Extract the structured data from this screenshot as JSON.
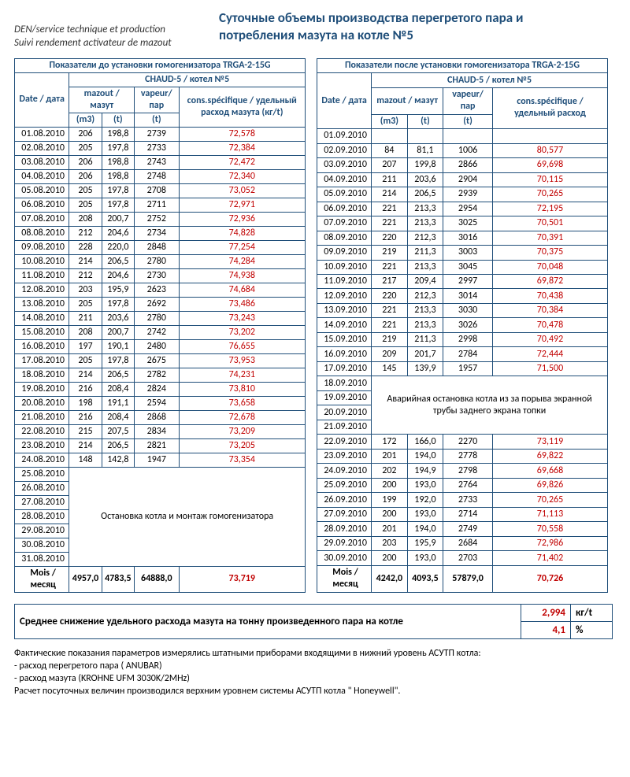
{
  "header": {
    "note_line1": "DEN/service technique et production",
    "note_line2": "Suivi rendement activateur de mazout",
    "title_line1": "Суточные объемы производства перегретого пара  и",
    "title_line2": "потребления мазута на котле №5"
  },
  "left": {
    "caption": "Показатели до установки гомогенизатора TRGA-2-15G",
    "sub": "CHAUD-5 / котел №5",
    "cols": {
      "date": "Date / дата",
      "mazout": "mazout / мазут",
      "m3": "(m3)",
      "t": "(t)",
      "vapeur": "vapeur/ пар",
      "vap_t": "(t)",
      "cons": "cons.spécifique / удельный расход  мазута (кг/t)"
    },
    "rows": [
      {
        "d": "01.08.2010",
        "m3": "206",
        "t": "198,8",
        "v": "2739",
        "c": "72,578"
      },
      {
        "d": "02.08.2010",
        "m3": "205",
        "t": "197,8",
        "v": "2733",
        "c": "72,384"
      },
      {
        "d": "03.08.2010",
        "m3": "206",
        "t": "198,8",
        "v": "2743",
        "c": "72,472"
      },
      {
        "d": "04.08.2010",
        "m3": "206",
        "t": "198,8",
        "v": "2748",
        "c": "72,340"
      },
      {
        "d": "05.08.2010",
        "m3": "205",
        "t": "197,8",
        "v": "2708",
        "c": "73,052"
      },
      {
        "d": "06.08.2010",
        "m3": "205",
        "t": "197,8",
        "v": "2711",
        "c": "72,971"
      },
      {
        "d": "07.08.2010",
        "m3": "208",
        "t": "200,7",
        "v": "2752",
        "c": "72,936"
      },
      {
        "d": "08.08.2010",
        "m3": "212",
        "t": "204,6",
        "v": "2734",
        "c": "74,828"
      },
      {
        "d": "09.08.2010",
        "m3": "228",
        "t": "220,0",
        "v": "2848",
        "c": "77,254"
      },
      {
        "d": "10.08.2010",
        "m3": "214",
        "t": "206,5",
        "v": "2780",
        "c": "74,284"
      },
      {
        "d": "11.08.2010",
        "m3": "212",
        "t": "204,6",
        "v": "2730",
        "c": "74,938"
      },
      {
        "d": "12.08.2010",
        "m3": "203",
        "t": "195,9",
        "v": "2623",
        "c": "74,684"
      },
      {
        "d": "13.08.2010",
        "m3": "205",
        "t": "197,8",
        "v": "2692",
        "c": "73,486"
      },
      {
        "d": "14.08.2010",
        "m3": "211",
        "t": "203,6",
        "v": "2780",
        "c": "73,243"
      },
      {
        "d": "15.08.2010",
        "m3": "208",
        "t": "200,7",
        "v": "2742",
        "c": "73,202"
      },
      {
        "d": "16.08.2010",
        "m3": "197",
        "t": "190,1",
        "v": "2480",
        "c": "76,655"
      },
      {
        "d": "17.08.2010",
        "m3": "205",
        "t": "197,8",
        "v": "2675",
        "c": "73,953"
      },
      {
        "d": "18.08.2010",
        "m3": "214",
        "t": "206,5",
        "v": "2782",
        "c": "74,231"
      },
      {
        "d": "19.08.2010",
        "m3": "216",
        "t": "208,4",
        "v": "2824",
        "c": "73,810"
      },
      {
        "d": "20.08.2010",
        "m3": "198",
        "t": "191,1",
        "v": "2594",
        "c": "73,658"
      },
      {
        "d": "21.08.2010",
        "m3": "216",
        "t": "208,4",
        "v": "2868",
        "c": "72,678"
      },
      {
        "d": "22.08.2010",
        "m3": "215",
        "t": "207,5",
        "v": "2834",
        "c": "73,209"
      },
      {
        "d": "23.08.2010",
        "m3": "214",
        "t": "206,5",
        "v": "2821",
        "c": "73,205"
      },
      {
        "d": "24.08.2010",
        "m3": "148",
        "t": "142,8",
        "v": "1947",
        "c": "73,354"
      }
    ],
    "stop_dates": [
      "25.08.2010",
      "26.08.2010",
      "27.08.2010",
      "28.08.2010",
      "29.08.2010",
      "30.08.2010",
      "31.08.2010"
    ],
    "stop_note": "Остановка котла и монтаж гомогенизатора",
    "total": {
      "label": "Mois /месяц",
      "m3": "4957,0",
      "t": "4783,5",
      "v": "64888,0",
      "c": "73,719"
    }
  },
  "right": {
    "caption": "Показатели после установки гомогенизатора TRGA-2-15G",
    "sub": "CHAUD-5 / котел №5",
    "cols": {
      "date": "Date / дата",
      "mazout": "mazout / мазут",
      "m3": "(m3)",
      "t": "(t)",
      "vapeur": "vapeur/ пар",
      "vap_t": "(t)",
      "cons": "cons.spécifique  / удельный расход"
    },
    "rows1": [
      {
        "d": "01.09.2010",
        "m3": "",
        "t": "",
        "v": "",
        "c": ""
      },
      {
        "d": "02.09.2010",
        "m3": "84",
        "t": "81,1",
        "v": "1006",
        "c": "80,577"
      },
      {
        "d": "03.09.2010",
        "m3": "207",
        "t": "199,8",
        "v": "2866",
        "c": "69,698"
      },
      {
        "d": "04.09.2010",
        "m3": "211",
        "t": "203,6",
        "v": "2904",
        "c": "70,115"
      },
      {
        "d": "05.09.2010",
        "m3": "214",
        "t": "206,5",
        "v": "2939",
        "c": "70,265"
      },
      {
        "d": "06.09.2010",
        "m3": "221",
        "t": "213,3",
        "v": "2954",
        "c": "72,195"
      },
      {
        "d": "07.09.2010",
        "m3": "221",
        "t": "213,3",
        "v": "3025",
        "c": "70,501"
      },
      {
        "d": "08.09.2010",
        "m3": "220",
        "t": "212,3",
        "v": "3016",
        "c": "70,391"
      },
      {
        "d": "09.09.2010",
        "m3": "219",
        "t": "211,3",
        "v": "3003",
        "c": "70,375"
      },
      {
        "d": "10.09.2010",
        "m3": "221",
        "t": "213,3",
        "v": "3045",
        "c": "70,048"
      },
      {
        "d": "11.09.2010",
        "m3": "217",
        "t": "209,4",
        "v": "2997",
        "c": "69,872"
      },
      {
        "d": "12.09.2010",
        "m3": "220",
        "t": "212,3",
        "v": "3014",
        "c": "70,438"
      },
      {
        "d": "13.09.2010",
        "m3": "221",
        "t": "213,3",
        "v": "3030",
        "c": "70,384"
      },
      {
        "d": "14.09.2010",
        "m3": "221",
        "t": "213,3",
        "v": "3026",
        "c": "70,478"
      },
      {
        "d": "15.09.2010",
        "m3": "219",
        "t": "211,3",
        "v": "2998",
        "c": "70,492"
      },
      {
        "d": "16.09.2010",
        "m3": "209",
        "t": "201,7",
        "v": "2784",
        "c": "72,444"
      },
      {
        "d": "17.09.2010",
        "m3": "145",
        "t": "139,9",
        "v": "1957",
        "c": "71,500"
      }
    ],
    "stop_dates": [
      "18.09.2010",
      "19.09.2010",
      "20.09.2010",
      "21.09.2010"
    ],
    "stop_note": "Аварийная остановка котла из за порыва экранной трубы заднего экрана топки",
    "rows2": [
      {
        "d": "22.09.2010",
        "m3": "172",
        "t": "166,0",
        "v": "2270",
        "c": "73,119"
      },
      {
        "d": "23.09.2010",
        "m3": "201",
        "t": "194,0",
        "v": "2778",
        "c": "69,822"
      },
      {
        "d": "24.09.2010",
        "m3": "202",
        "t": "194,9",
        "v": "2798",
        "c": "69,668"
      },
      {
        "d": "25.09.2010",
        "m3": "200",
        "t": "193,0",
        "v": "2764",
        "c": "69,826"
      },
      {
        "d": "26.09.2010",
        "m3": "199",
        "t": "192,0",
        "v": "2733",
        "c": "70,265"
      },
      {
        "d": "27.09.2010",
        "m3": "200",
        "t": "193,0",
        "v": "2714",
        "c": "71,113"
      },
      {
        "d": "28.09.2010",
        "m3": "201",
        "t": "194,0",
        "v": "2749",
        "c": "70,558"
      },
      {
        "d": "29.09.2010",
        "m3": "203",
        "t": "195,9",
        "v": "2684",
        "c": "72,986"
      },
      {
        "d": "30.09.2010",
        "m3": "200",
        "t": "193,0",
        "v": "2703",
        "c": "71,402"
      }
    ],
    "total": {
      "label": "Mois /месяц",
      "m3": "4242,0",
      "t": "4093,5",
      "v": "57879,0",
      "c": "70,726"
    }
  },
  "summary": {
    "label": "Среднее снижение удельного расхода мазута на тонну произведенного пара на котле",
    "v1": "2,994",
    "u1": "кг/t",
    "v2": "4,1",
    "u2": "%"
  },
  "footer": {
    "l1": "Фактические показания параметров  измерялись штатными приборами  входящими  в нижний уровень  АСУТП котла:",
    "l2": "- расход перегретого пара   ( ANUBAR)",
    "l3": "- расход  мазута           (KROHNE     UFM 3030K/2MHz)",
    "l4": "Расчет  посуточных  величин производился  верхним уровнем  системы АСУТП  котла    \" Honeywell\"."
  },
  "colors": {
    "accent": "#1f4e79",
    "red": "#c00000"
  }
}
